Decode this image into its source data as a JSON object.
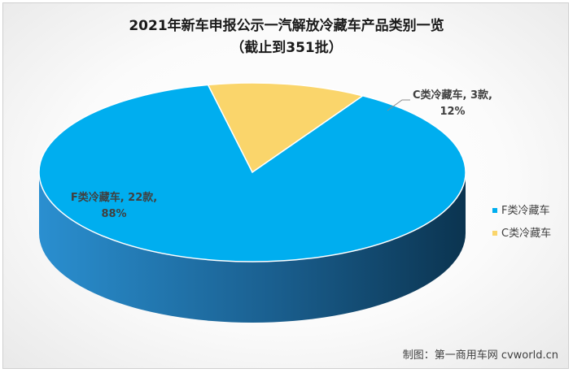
{
  "chart_data": {
    "type": "pie",
    "title": "2021年新车申报公示一汽解放冷藏车产品类别一览",
    "subtitle": "（截止到351批）",
    "categories": [
      "F类冷藏车",
      "C类冷藏车"
    ],
    "values": [
      22,
      3
    ],
    "percentages": [
      "88%",
      "12%"
    ],
    "data_labels": [
      {
        "line1": "F类冷藏车, 22款,",
        "line2": "88%"
      },
      {
        "line1": "C类冷藏车, 3款,",
        "line2": "12%"
      }
    ],
    "colors": [
      "#00aeef",
      "#fad56b"
    ],
    "side_colors": [
      "#1e6fa5",
      "#b89a3c"
    ],
    "legend": {
      "position": "right",
      "entries": [
        "F类冷藏车",
        "C类冷藏车"
      ]
    },
    "style": "3d-pie"
  },
  "credit": "制图：第一商用车网 cvworld.cn"
}
